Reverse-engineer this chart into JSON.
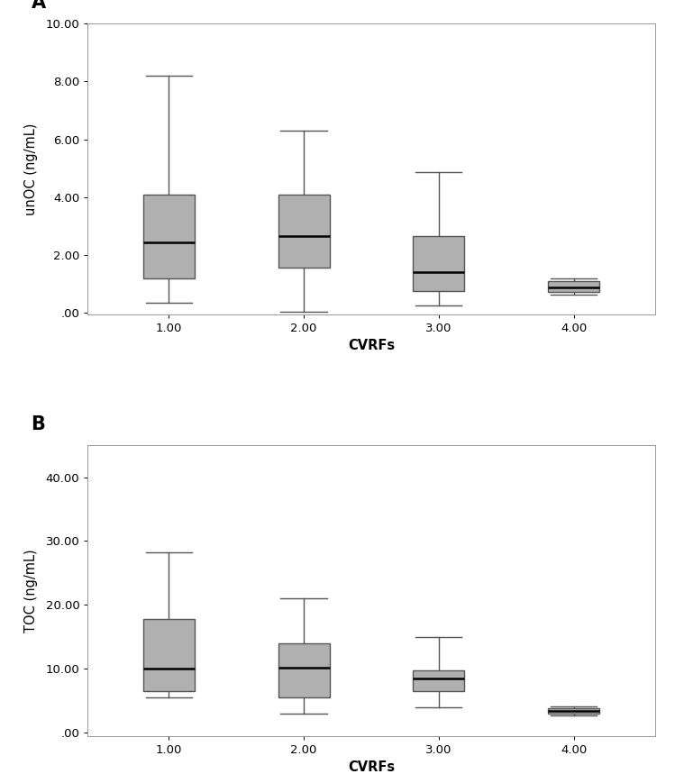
{
  "panel_A": {
    "title": "A",
    "ylabel": "unOC (ng/mL)",
    "xlabel": "CVRFs",
    "ylim": [
      -0.05,
      10.0
    ],
    "yticks": [
      0.0,
      2.0,
      4.0,
      6.0,
      8.0,
      10.0
    ],
    "ytick_labels": [
      ".00",
      "2.00",
      "4.00",
      "6.00",
      "8.00",
      "10.00"
    ],
    "xtick_labels": [
      "1.00",
      "2.00",
      "3.00",
      "4.00"
    ],
    "boxes": [
      {
        "q1": 1.2,
        "median": 2.45,
        "q3": 4.1,
        "whisker_low": 0.35,
        "whisker_high": 8.2
      },
      {
        "q1": 1.55,
        "median": 2.65,
        "q3": 4.1,
        "whisker_low": 0.05,
        "whisker_high": 6.3
      },
      {
        "q1": 0.75,
        "median": 1.4,
        "q3": 2.65,
        "whisker_low": 0.25,
        "whisker_high": 4.85
      },
      {
        "q1": 0.72,
        "median": 0.88,
        "q3": 1.1,
        "whisker_low": 0.62,
        "whisker_high": 1.18
      }
    ]
  },
  "panel_B": {
    "title": "B",
    "ylabel": "TOC (ng/mL)",
    "xlabel": "CVRFs",
    "ylim": [
      -0.5,
      45.0
    ],
    "yticks": [
      0.0,
      10.0,
      20.0,
      30.0,
      40.0
    ],
    "ytick_labels": [
      ".00",
      "10.00",
      "20.00",
      "30.00",
      "40.00"
    ],
    "xtick_labels": [
      "1.00",
      "2.00",
      "3.00",
      "4.00"
    ],
    "boxes": [
      {
        "q1": 6.5,
        "median": 10.1,
        "q3": 17.8,
        "whisker_low": 5.5,
        "whisker_high": 28.2
      },
      {
        "q1": 5.5,
        "median": 10.2,
        "q3": 14.0,
        "whisker_low": 3.0,
        "whisker_high": 21.0
      },
      {
        "q1": 6.5,
        "median": 8.5,
        "q3": 9.8,
        "whisker_low": 4.0,
        "whisker_high": 15.0
      },
      {
        "q1": 3.0,
        "median": 3.4,
        "q3": 3.8,
        "whisker_low": 2.7,
        "whisker_high": 4.1
      }
    ]
  },
  "box_color": "#b0b0b0",
  "box_edge_color": "#555555",
  "median_color": "#000000",
  "whisker_color": "#555555",
  "cap_color": "#555555",
  "box_width": 0.38,
  "linewidth": 1.0,
  "median_linewidth": 1.8,
  "background_color": "#ffffff",
  "panel_bg_color": "#ffffff"
}
